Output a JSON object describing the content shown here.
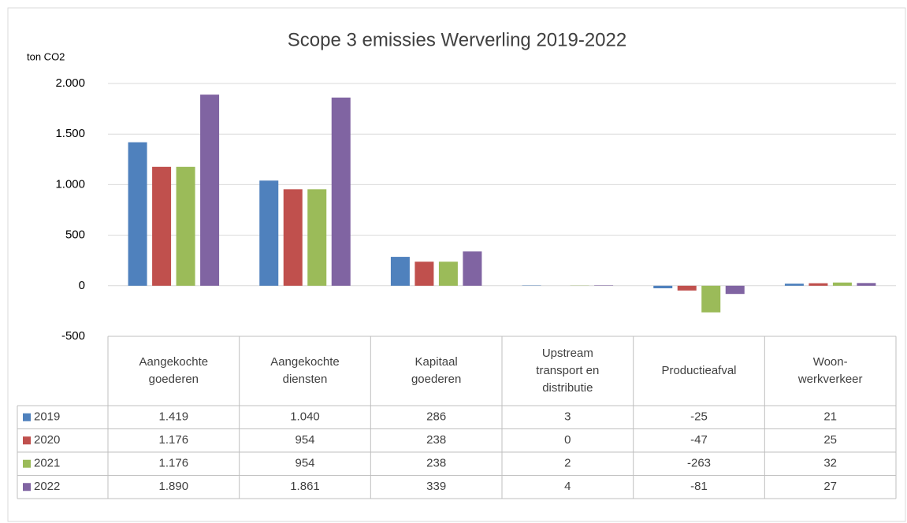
{
  "chart_data": {
    "type": "bar",
    "title": "Scope 3 emissies Werverling 2019-2022",
    "y_axis_label": "ton CO2",
    "categories": [
      "Aangekochte goederen",
      "Aangekochte diensten",
      "Kapitaal goederen",
      "Upstream transport en distributie",
      "Productieafval",
      "Woon-werkverkeer"
    ],
    "series": [
      {
        "name": "2019",
        "color": "#4f81bd",
        "values": [
          1419,
          1040,
          286,
          3,
          -25,
          21
        ],
        "value_labels": [
          "1.419",
          "1.040",
          "286",
          "3",
          "-25",
          "21"
        ]
      },
      {
        "name": "2020",
        "color": "#c0504d",
        "values": [
          1176,
          954,
          238,
          0,
          -47,
          25
        ],
        "value_labels": [
          "1.176",
          "954",
          "238",
          "0",
          "-47",
          "25"
        ]
      },
      {
        "name": "2021",
        "color": "#9bbb59",
        "values": [
          1176,
          954,
          238,
          2,
          -263,
          32
        ],
        "value_labels": [
          "1.176",
          "954",
          "238",
          "2",
          "-263",
          "32"
        ]
      },
      {
        "name": "2022",
        "color": "#8064a2",
        "values": [
          1890,
          1861,
          339,
          4,
          -81,
          27
        ],
        "value_labels": [
          "1.890",
          "1.861",
          "339",
          "4",
          "-81",
          "27"
        ]
      }
    ],
    "ylim": [
      -500,
      2000
    ],
    "yticks": [
      -500,
      0,
      500,
      {
        "value": 1000,
        "label": "1.000"
      },
      {
        "value": 1500,
        "label": "1.500"
      },
      {
        "value": 2000,
        "label": "2.000"
      }
    ],
    "grid": true,
    "data_table": true
  }
}
